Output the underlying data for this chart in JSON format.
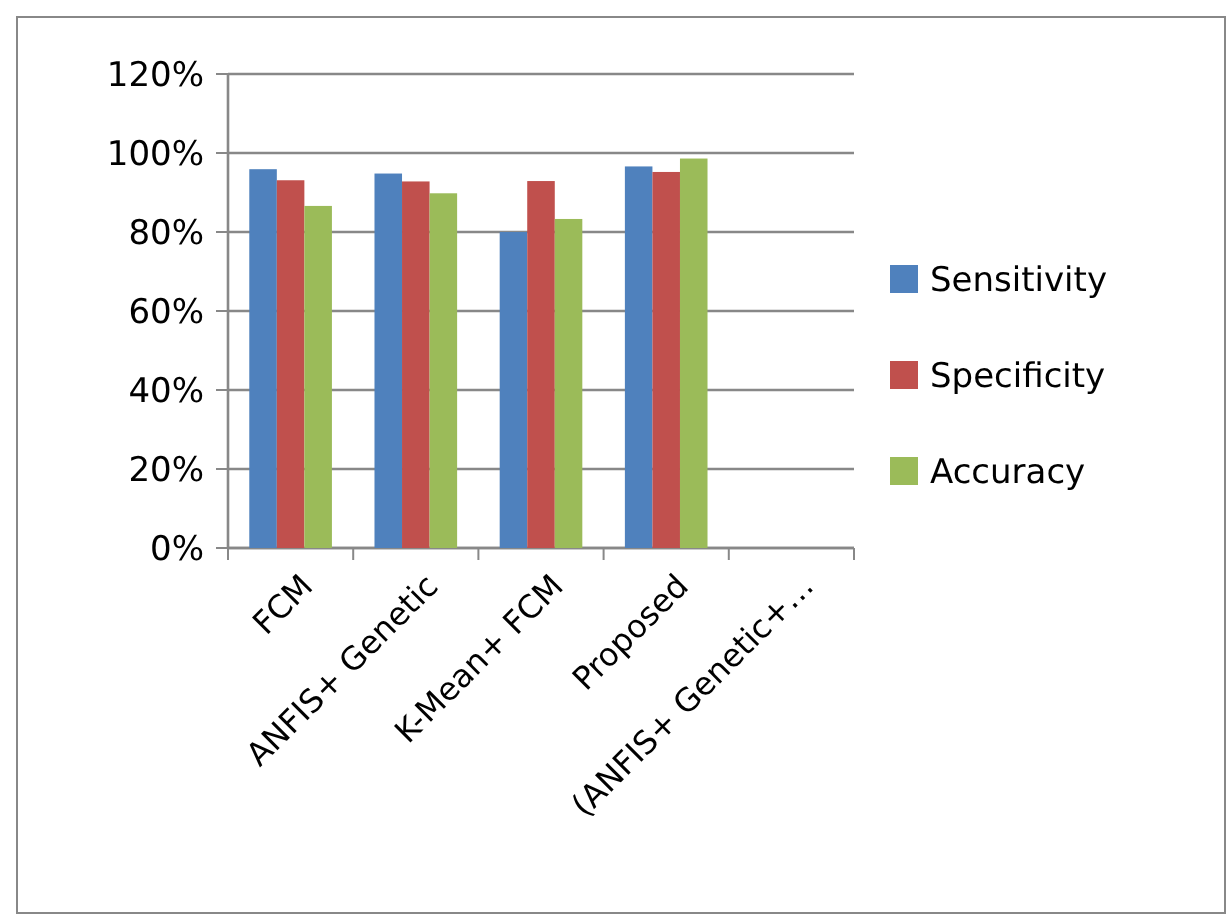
{
  "chart_data": {
    "type": "bar",
    "categories": [
      "FCM",
      "ANFIS+ Genetic",
      "K-Mean+ FCM",
      "Proposed",
      "(ANFIS+ Genetic+…"
    ],
    "series": [
      {
        "name": "Sensitivity",
        "color": "#4f81bd",
        "values": [
          95.9,
          94.8,
          80,
          96.6,
          null
        ]
      },
      {
        "name": "Specificity",
        "color": "#c0504d",
        "values": [
          93.1,
          92.8,
          92.9,
          95.2,
          null
        ]
      },
      {
        "name": "Accuracy",
        "color": "#9bbb59",
        "values": [
          86.6,
          89.8,
          83.3,
          98.6,
          null
        ]
      }
    ],
    "ylim": [
      0,
      120
    ],
    "yticks": [
      {
        "value": 0,
        "label": "0%"
      },
      {
        "value": 20,
        "label": "20%"
      },
      {
        "value": 40,
        "label": "40%"
      },
      {
        "value": 60,
        "label": "60%"
      },
      {
        "value": 80,
        "label": "80%"
      },
      {
        "value": 100,
        "label": "100%"
      },
      {
        "value": 120,
        "label": "120%"
      }
    ],
    "grid": "y",
    "legend": "right"
  }
}
